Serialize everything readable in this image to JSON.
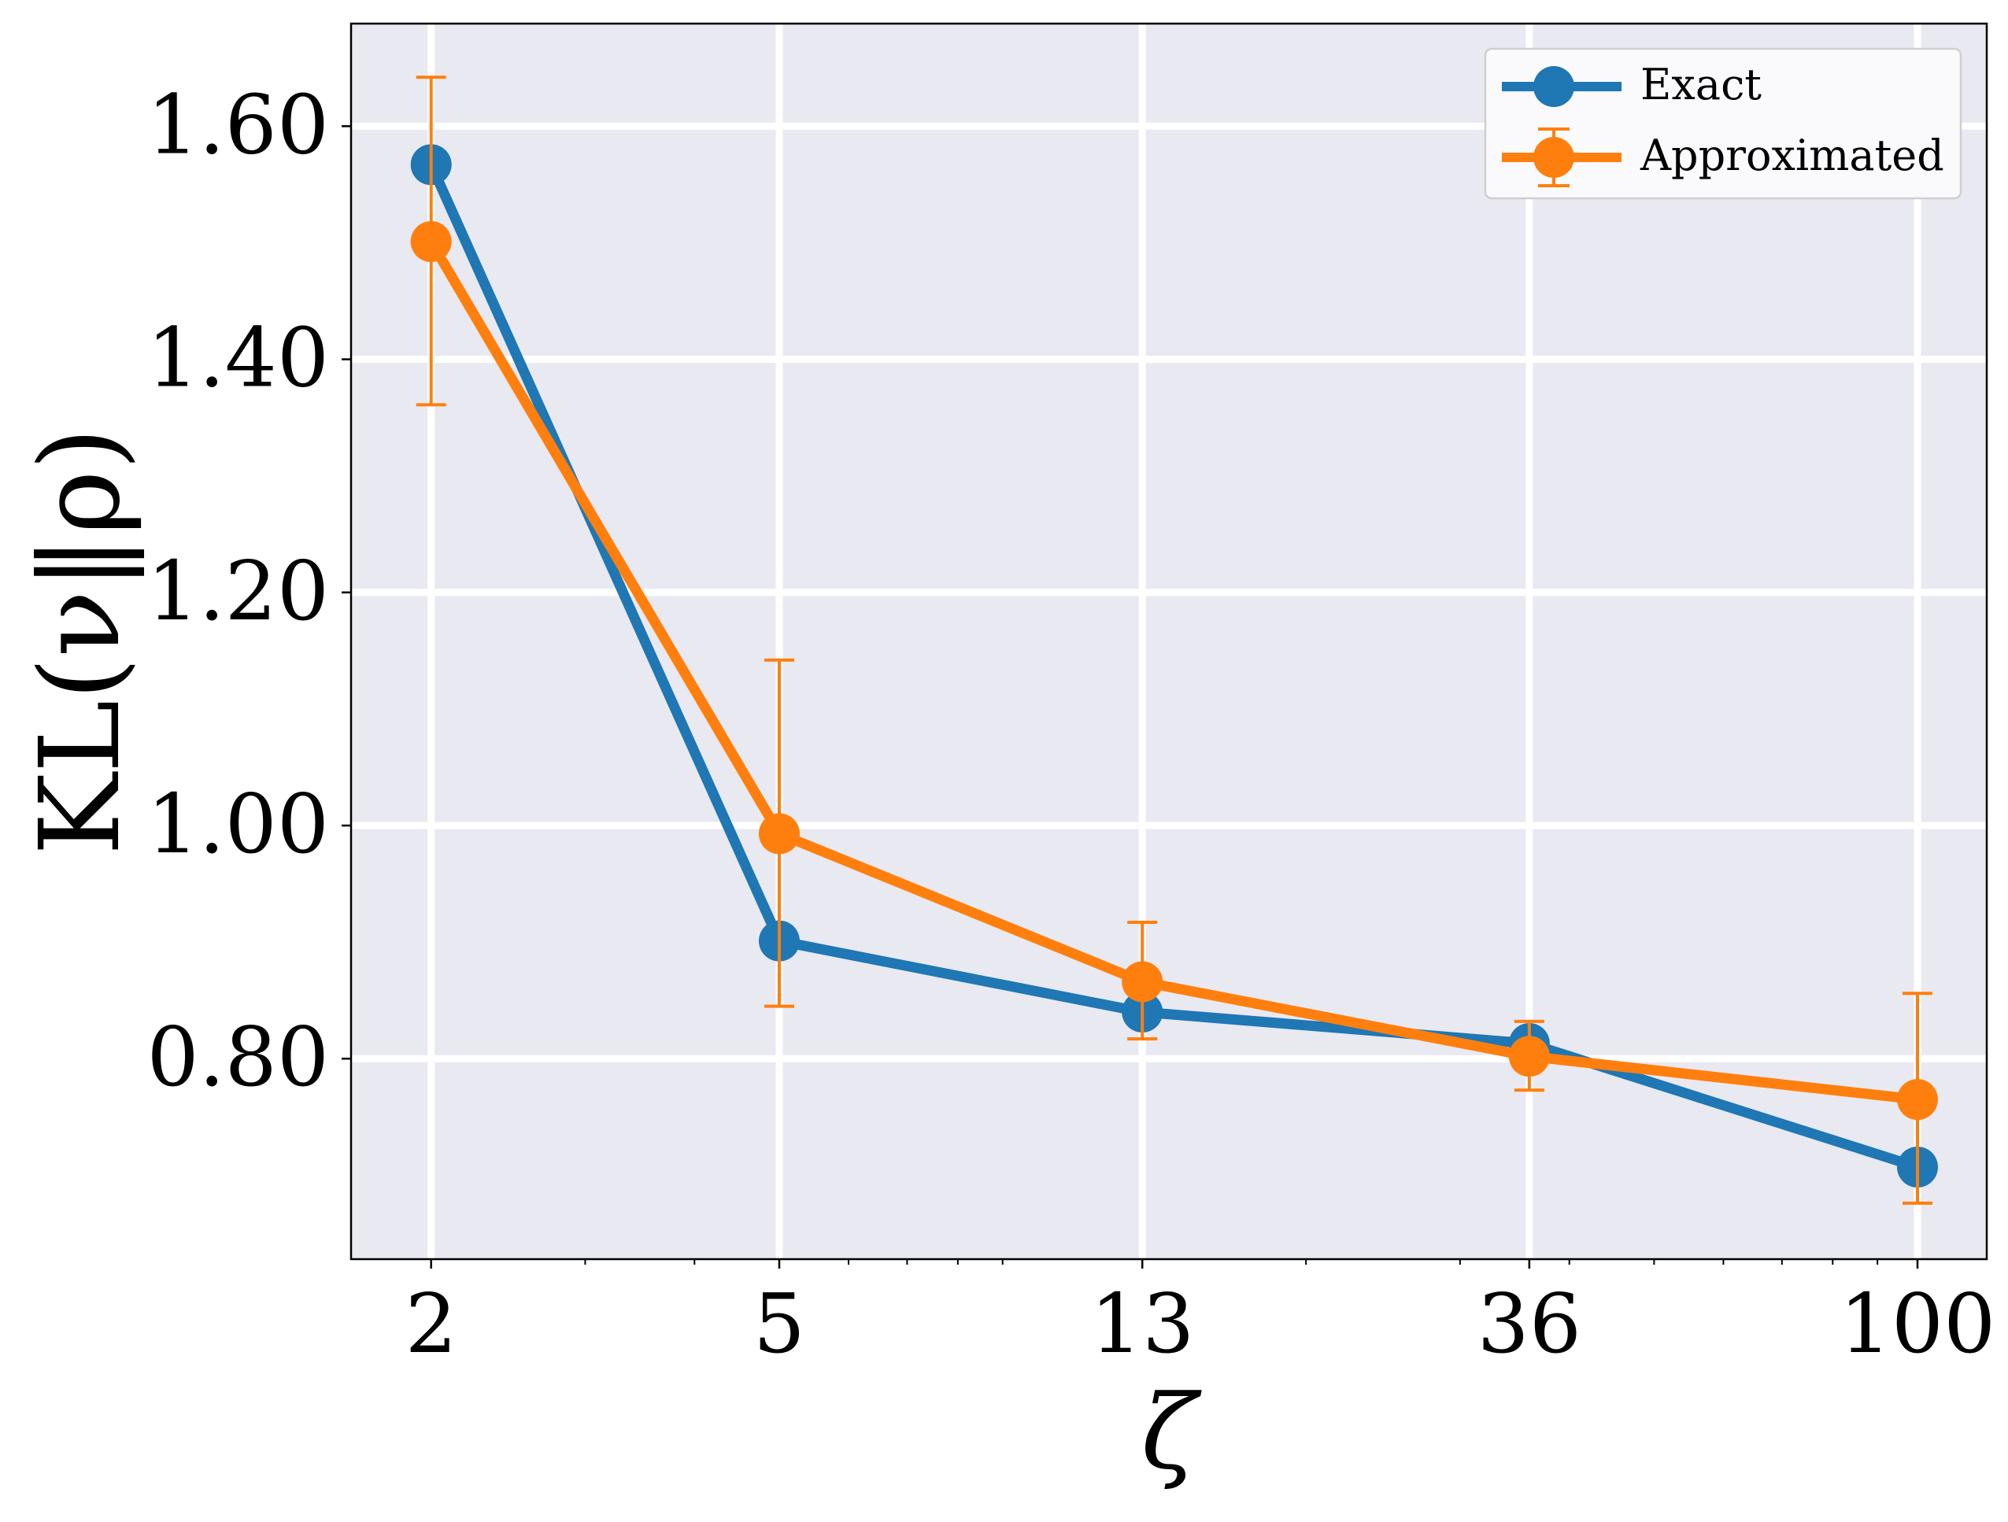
{
  "chart_data": {
    "type": "line",
    "xscale": "log",
    "x": [
      2,
      5,
      13,
      36,
      100
    ],
    "x_tick_labels": [
      "2",
      "5",
      "13",
      "36",
      "100"
    ],
    "xlim": [
      1.62,
      120
    ],
    "ylim": [
      0.628,
      1.688
    ],
    "y_ticks": [
      0.8,
      1.0,
      1.2,
      1.4,
      1.6
    ],
    "y_tick_labels": [
      "0.80",
      "1.00",
      "1.20",
      "1.40",
      "1.60"
    ],
    "xlabel": "ζ",
    "ylabel": "KL(ν‖ρ)",
    "grid": true,
    "legend_position": "top-right",
    "series": [
      {
        "name": "Exact",
        "color": "#1f77b4",
        "values": [
          1.567,
          0.901,
          0.84,
          0.813,
          0.707
        ]
      },
      {
        "name": "Approximated",
        "color": "#ff7f0e",
        "values": [
          1.501,
          0.993,
          0.866,
          0.802,
          0.765
        ],
        "error_low": [
          1.361,
          0.845,
          0.817,
          0.773,
          0.676
        ],
        "error_high": [
          1.642,
          1.142,
          0.917,
          0.832,
          0.856
        ]
      }
    ]
  }
}
